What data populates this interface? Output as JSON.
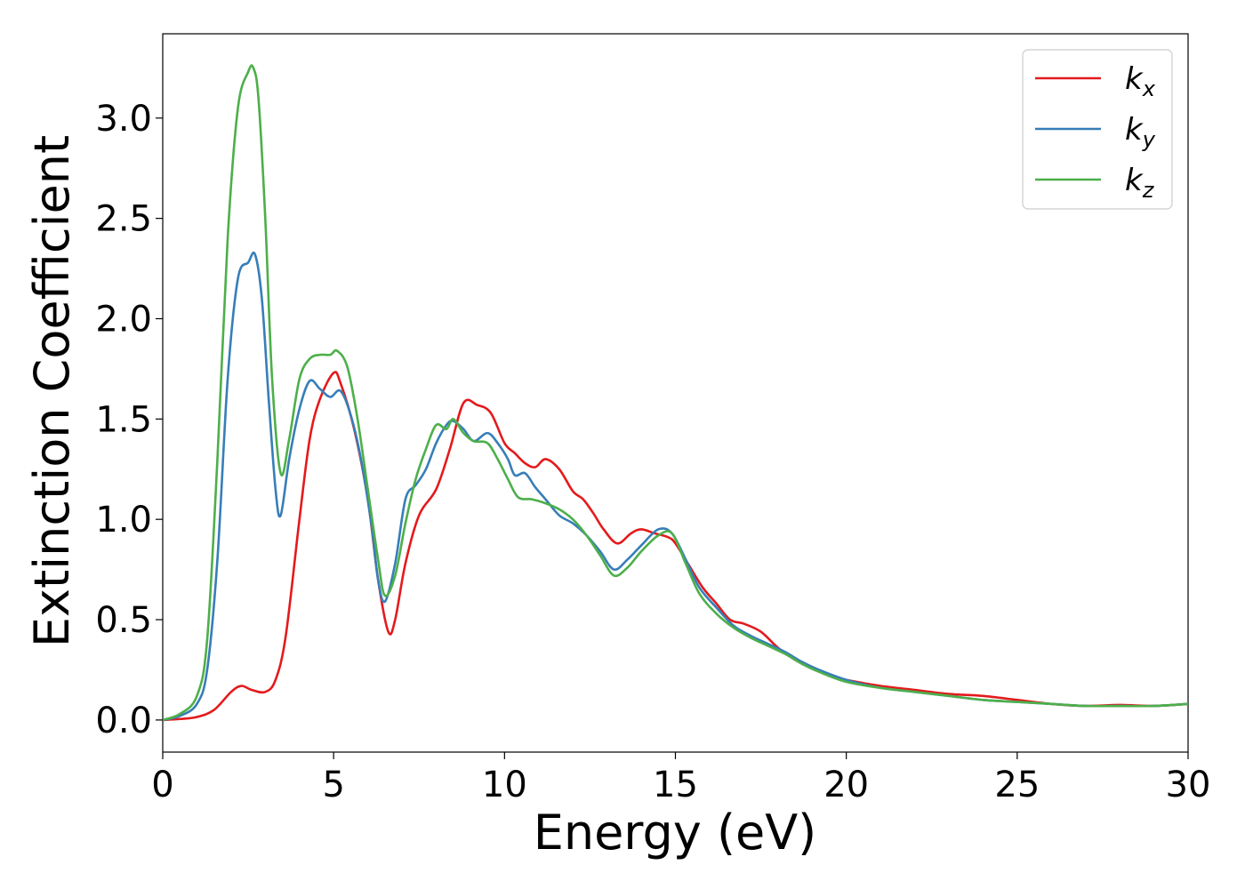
{
  "chart_data": {
    "type": "line",
    "xlabel": "Energy (eV)",
    "ylabel": "Extinction Coefficient",
    "xlim": [
      0,
      30
    ],
    "ylim": [
      -0.16,
      3.42
    ],
    "xticks": [
      0,
      5,
      10,
      15,
      20,
      25,
      30
    ],
    "xtick_labels": [
      "0",
      "5",
      "10",
      "15",
      "20",
      "25",
      "30"
    ],
    "yticks": [
      0.0,
      0.5,
      1.0,
      1.5,
      2.0,
      2.5,
      3.0
    ],
    "ytick_labels": [
      "0.0",
      "0.5",
      "1.0",
      "1.5",
      "2.0",
      "2.5",
      "3.0"
    ],
    "grid": false,
    "legend_position": "top-right",
    "series": [
      {
        "name": "k_x",
        "label_base": "k",
        "label_sub": "x",
        "color": "#e41a1c",
        "x": [
          0,
          0.5,
          1.0,
          1.5,
          2.0,
          2.3,
          2.6,
          3.0,
          3.3,
          3.6,
          4.0,
          4.3,
          4.6,
          5.0,
          5.2,
          5.6,
          6.0,
          6.3,
          6.6,
          6.8,
          7.1,
          7.5,
          8.0,
          8.4,
          8.8,
          9.2,
          9.6,
          10.0,
          10.3,
          10.6,
          10.9,
          11.2,
          11.6,
          12.0,
          12.3,
          12.6,
          12.9,
          13.3,
          13.7,
          14.0,
          14.4,
          14.8,
          15.0,
          15.4,
          15.8,
          16.2,
          16.6,
          17.0,
          17.5,
          18.0,
          18.5,
          19.0,
          19.5,
          20.0,
          21.0,
          22.0,
          23.0,
          24.0,
          25.0,
          26.0,
          27.0,
          28.0,
          29.0,
          30.0
        ],
        "y": [
          0.0,
          0.005,
          0.015,
          0.05,
          0.14,
          0.17,
          0.15,
          0.14,
          0.2,
          0.42,
          1.0,
          1.4,
          1.6,
          1.73,
          1.68,
          1.45,
          1.1,
          0.7,
          0.44,
          0.5,
          0.78,
          1.02,
          1.15,
          1.35,
          1.58,
          1.57,
          1.53,
          1.38,
          1.33,
          1.28,
          1.26,
          1.3,
          1.25,
          1.14,
          1.1,
          1.03,
          0.95,
          0.88,
          0.93,
          0.95,
          0.93,
          0.91,
          0.88,
          0.77,
          0.66,
          0.58,
          0.5,
          0.48,
          0.44,
          0.36,
          0.3,
          0.26,
          0.22,
          0.2,
          0.17,
          0.15,
          0.13,
          0.12,
          0.1,
          0.08,
          0.07,
          0.075,
          0.07,
          0.08
        ]
      },
      {
        "name": "k_y",
        "label_base": "k",
        "label_sub": "y",
        "color": "#377eb8",
        "x": [
          0,
          0.5,
          1.0,
          1.3,
          1.6,
          1.9,
          2.2,
          2.5,
          2.7,
          2.9,
          3.1,
          3.3,
          3.45,
          3.7,
          4.0,
          4.3,
          4.6,
          4.9,
          5.2,
          5.5,
          5.8,
          6.1,
          6.3,
          6.5,
          6.8,
          7.1,
          7.4,
          7.7,
          8.0,
          8.3,
          8.5,
          8.8,
          9.1,
          9.5,
          9.8,
          10.1,
          10.3,
          10.6,
          10.9,
          11.2,
          11.6,
          12.0,
          12.4,
          12.8,
          13.2,
          13.6,
          14.0,
          14.5,
          14.9,
          15.3,
          15.7,
          16.2,
          16.7,
          17.2,
          17.7,
          18.2,
          18.7,
          19.2,
          20.0,
          21.0,
          22.0,
          23.0,
          24.0,
          25.0,
          26.0,
          27.0,
          28.0,
          29.0,
          30.0
        ],
        "y": [
          0.0,
          0.02,
          0.08,
          0.25,
          0.8,
          1.7,
          2.2,
          2.28,
          2.32,
          2.1,
          1.6,
          1.15,
          1.02,
          1.3,
          1.55,
          1.69,
          1.65,
          1.61,
          1.64,
          1.52,
          1.3,
          0.98,
          0.7,
          0.59,
          0.78,
          1.1,
          1.17,
          1.25,
          1.38,
          1.47,
          1.49,
          1.45,
          1.39,
          1.43,
          1.38,
          1.3,
          1.22,
          1.23,
          1.16,
          1.1,
          1.02,
          0.98,
          0.92,
          0.84,
          0.75,
          0.8,
          0.87,
          0.95,
          0.93,
          0.8,
          0.66,
          0.56,
          0.47,
          0.42,
          0.38,
          0.34,
          0.29,
          0.25,
          0.2,
          0.16,
          0.14,
          0.12,
          0.1,
          0.09,
          0.08,
          0.07,
          0.07,
          0.07,
          0.08
        ]
      },
      {
        "name": "k_z",
        "label_base": "k",
        "label_sub": "z",
        "color": "#4daf4a",
        "x": [
          0,
          0.5,
          1.0,
          1.3,
          1.6,
          1.9,
          2.2,
          2.5,
          2.65,
          2.8,
          3.0,
          3.2,
          3.45,
          3.7,
          4.0,
          4.3,
          4.6,
          4.9,
          5.1,
          5.4,
          5.7,
          6.0,
          6.3,
          6.5,
          6.8,
          7.1,
          7.4,
          7.7,
          8.0,
          8.3,
          8.5,
          8.8,
          9.1,
          9.5,
          9.8,
          10.1,
          10.4,
          10.8,
          11.2,
          11.6,
          12.0,
          12.4,
          12.8,
          13.2,
          13.6,
          14.0,
          14.5,
          14.9,
          15.3,
          15.7,
          16.2,
          16.7,
          17.2,
          17.7,
          18.2,
          18.7,
          19.2,
          20.0,
          21.0,
          22.0,
          23.0,
          24.0,
          25.0,
          26.0,
          27.0,
          28.0,
          29.0,
          30.0
        ],
        "y": [
          0.0,
          0.03,
          0.12,
          0.4,
          1.3,
          2.4,
          3.05,
          3.23,
          3.25,
          3.1,
          2.5,
          1.7,
          1.23,
          1.4,
          1.7,
          1.8,
          1.82,
          1.82,
          1.84,
          1.76,
          1.5,
          1.15,
          0.8,
          0.62,
          0.72,
          0.98,
          1.2,
          1.35,
          1.47,
          1.45,
          1.5,
          1.43,
          1.39,
          1.38,
          1.3,
          1.2,
          1.11,
          1.1,
          1.08,
          1.05,
          1.0,
          0.92,
          0.82,
          0.72,
          0.76,
          0.84,
          0.92,
          0.93,
          0.78,
          0.63,
          0.53,
          0.46,
          0.41,
          0.37,
          0.33,
          0.28,
          0.24,
          0.19,
          0.16,
          0.14,
          0.12,
          0.1,
          0.09,
          0.08,
          0.07,
          0.07,
          0.07,
          0.08
        ]
      }
    ]
  }
}
